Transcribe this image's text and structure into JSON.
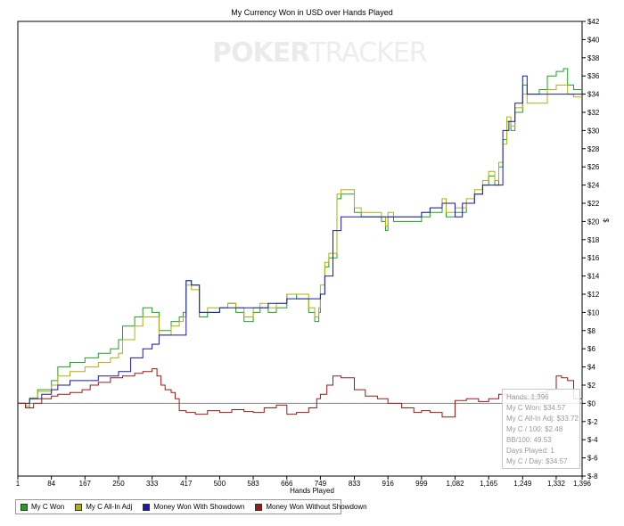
{
  "chart_data": {
    "type": "line",
    "title": "My Currency Won in USD over Hands Played",
    "xlabel": "Hands Played",
    "ylabel": "$",
    "xlim": [
      1,
      1396
    ],
    "ylim": [
      -8,
      42
    ],
    "x_ticks": [
      1,
      84,
      167,
      250,
      333,
      417,
      500,
      583,
      666,
      749,
      833,
      916,
      999,
      1082,
      1165,
      1249,
      1332,
      1396
    ],
    "x_tick_labels": [
      "1",
      "84",
      "167",
      "250",
      "333",
      "417",
      "500",
      "583",
      "666",
      "749",
      "833",
      "916",
      "999",
      "1,082",
      "1,165",
      "1,249",
      "1,332",
      "1,396"
    ],
    "y_ticks": [
      -8,
      -6,
      -4,
      -2,
      0,
      2,
      4,
      6,
      8,
      10,
      12,
      14,
      16,
      18,
      20,
      22,
      24,
      26,
      28,
      30,
      32,
      34,
      36,
      38,
      40,
      42
    ],
    "y_tick_labels": [
      "$-8",
      "$-6",
      "$-4",
      "$-2",
      "$0",
      "$2",
      "$4",
      "$6",
      "$8",
      "$10",
      "$12",
      "$14",
      "$16",
      "$18",
      "$20",
      "$22",
      "$24",
      "$26",
      "$28",
      "$30",
      "$32",
      "$34",
      "$36",
      "$38",
      "$40",
      "$42"
    ],
    "y_axis_side": "right",
    "grid": false,
    "legend_position": "bottom-left",
    "series": [
      {
        "name": "My C Won",
        "color": "#22a022",
        "x": [
          1,
          20,
          30,
          50,
          84,
          100,
          130,
          167,
          200,
          230,
          250,
          260,
          290,
          310,
          333,
          350,
          380,
          400,
          410,
          417,
          430,
          450,
          470,
          500,
          520,
          540,
          560,
          583,
          600,
          620,
          640,
          666,
          690,
          720,
          735,
          745,
          749,
          760,
          770,
          790,
          800,
          833,
          850,
          880,
          900,
          910,
          916,
          930,
          960,
          999,
          1020,
          1050,
          1060,
          1082,
          1110,
          1130,
          1150,
          1165,
          1180,
          1190,
          1200,
          1210,
          1220,
          1230,
          1249,
          1260,
          1290,
          1310,
          1332,
          1350,
          1360,
          1375,
          1396
        ],
        "y": [
          0,
          -0.5,
          0.5,
          1.5,
          2.5,
          4,
          4.5,
          5,
          5.5,
          6,
          7,
          8.5,
          9.5,
          10.5,
          10,
          8,
          9,
          9.5,
          10,
          13.5,
          13,
          9.5,
          10,
          10.5,
          11,
          10,
          9,
          10,
          10.5,
          10,
          10.5,
          12,
          11.5,
          10,
          9,
          10,
          12,
          15,
          16,
          22.5,
          23,
          21,
          20.5,
          20.5,
          20,
          19,
          20.5,
          20,
          20,
          20.5,
          21,
          22,
          20.5,
          21,
          22,
          23,
          24,
          25,
          24,
          26,
          29,
          31,
          30,
          32,
          35,
          34,
          34.5,
          36,
          36.5,
          36.8,
          35,
          34.5,
          34.5
        ]
      },
      {
        "name": "My C All-In Adj",
        "color": "#b0b010",
        "x": [
          1,
          20,
          30,
          50,
          84,
          100,
          130,
          167,
          200,
          230,
          250,
          260,
          290,
          310,
          333,
          350,
          380,
          400,
          410,
          417,
          430,
          450,
          470,
          500,
          520,
          540,
          560,
          583,
          600,
          620,
          640,
          666,
          690,
          720,
          735,
          745,
          749,
          760,
          770,
          790,
          800,
          833,
          850,
          880,
          900,
          910,
          916,
          930,
          960,
          999,
          1020,
          1050,
          1060,
          1082,
          1110,
          1130,
          1150,
          1165,
          1180,
          1190,
          1200,
          1210,
          1220,
          1230,
          1249,
          1260,
          1290,
          1310,
          1332,
          1350,
          1360,
          1375,
          1396
        ],
        "y": [
          0,
          -0.3,
          0.6,
          1.3,
          2,
          3,
          3.5,
          4,
          4.5,
          5,
          5.5,
          7,
          8.5,
          9.5,
          9.5,
          7.5,
          8.5,
          9,
          9.5,
          13,
          12.5,
          10,
          10.5,
          10.5,
          11,
          10.5,
          9.5,
          10.5,
          11,
          10.5,
          11,
          12,
          12,
          10.5,
          9.5,
          10.5,
          13,
          15.5,
          16.5,
          23,
          23.5,
          21.5,
          21,
          21,
          20.5,
          19.5,
          21,
          20.5,
          20.5,
          21,
          21.5,
          22.5,
          21,
          21.5,
          22.5,
          23.5,
          24.5,
          25.5,
          24.5,
          26.5,
          28.5,
          31.5,
          30.5,
          32.5,
          34,
          33,
          33,
          34.5,
          35,
          35,
          34,
          33.7,
          33.7
        ]
      },
      {
        "name": "Money Won With Showdown",
        "color": "#1a1aaa",
        "x": [
          1,
          30,
          60,
          84,
          100,
          130,
          167,
          200,
          230,
          250,
          280,
          310,
          333,
          350,
          380,
          400,
          410,
          417,
          430,
          450,
          480,
          500,
          540,
          583,
          620,
          666,
          700,
          740,
          749,
          760,
          780,
          800,
          833,
          860,
          900,
          916,
          950,
          999,
          1020,
          1050,
          1082,
          1100,
          1130,
          1150,
          1165,
          1190,
          1200,
          1215,
          1230,
          1249,
          1260,
          1300,
          1332,
          1360,
          1396
        ],
        "y": [
          0,
          0.5,
          1,
          1.5,
          2,
          2.5,
          2.5,
          3,
          3,
          3.5,
          5,
          6,
          6.5,
          7.5,
          7.5,
          7.5,
          7.5,
          13.5,
          13,
          10,
          10,
          10.5,
          10.5,
          10.5,
          11,
          11.5,
          11.5,
          11.5,
          12,
          14,
          19,
          20.5,
          20.5,
          20.5,
          20.5,
          20.5,
          20.5,
          21,
          21.5,
          22,
          20.5,
          22,
          23,
          24,
          24,
          24,
          30,
          31,
          33,
          36,
          34,
          34,
          34,
          34,
          34
        ]
      },
      {
        "name": "Money Won Without Showdown",
        "color": "#9a1a1a",
        "x": [
          1,
          20,
          40,
          60,
          84,
          100,
          130,
          160,
          180,
          200,
          230,
          260,
          290,
          310,
          333,
          345,
          355,
          365,
          380,
          390,
          400,
          417,
          440,
          470,
          500,
          530,
          560,
          583,
          610,
          640,
          666,
          690,
          720,
          740,
          749,
          765,
          780,
          800,
          833,
          860,
          890,
          916,
          950,
          980,
          999,
          1020,
          1050,
          1082,
          1110,
          1140,
          1165,
          1190,
          1215,
          1230,
          1249,
          1270,
          1290,
          1310,
          1332,
          1345,
          1360,
          1375,
          1396
        ],
        "y": [
          0,
          -0.5,
          0,
          0.5,
          0.8,
          1,
          1.2,
          1.5,
          2,
          2.3,
          2.8,
          3,
          3.3,
          3.5,
          3.8,
          3,
          2,
          1.5,
          1.2,
          0.5,
          -0.8,
          -1,
          -1.2,
          -0.8,
          -1,
          -0.7,
          -0.9,
          -1,
          -0.5,
          -0.2,
          -1.2,
          -1,
          -0.5,
          0.5,
          1,
          2,
          3,
          2.8,
          1.5,
          0.8,
          0.5,
          0,
          -0.5,
          -1,
          -0.8,
          -1,
          -1.5,
          0.3,
          0.5,
          0.2,
          0.5,
          1,
          0.8,
          0.5,
          0.5,
          0.8,
          1.2,
          1.5,
          3,
          2.8,
          2.5,
          0.5,
          0.3
        ]
      }
    ]
  },
  "watermark": {
    "part1": "POKER",
    "part2": "TRACKER"
  },
  "stats": {
    "hands": "Hands: 1,396",
    "c_won": "My C Won: $34.57",
    "c_allin": "My C All-In Adj: $33.72",
    "c_100": "My C / 100: $2.48",
    "bb100": "BB/100: 49.53",
    "days": "Days Played: 1",
    "c_day": "My C / Day: $34.57"
  },
  "zero_line_color": "#808080"
}
